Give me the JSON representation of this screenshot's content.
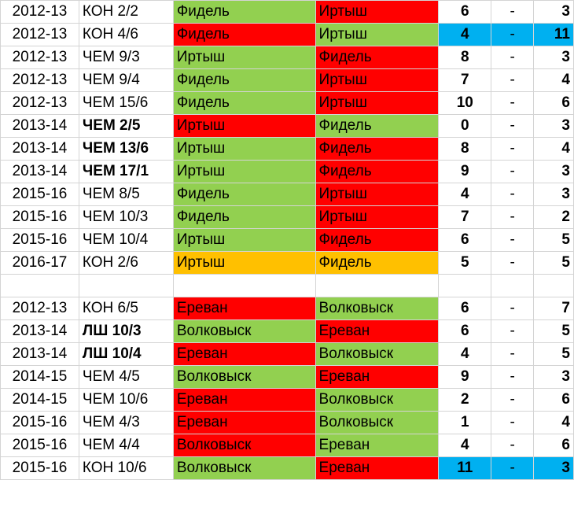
{
  "colors": {
    "win": "#92d050",
    "loss": "#ff0000",
    "draw": "#ffc000",
    "highlight": "#00b0f0"
  },
  "rows": [
    {
      "season": "2012-13",
      "stage": "КОН 2/2",
      "home": "Фидель",
      "away": "Иртыш",
      "hs": "6",
      "dash": "-",
      "as": "3",
      "homeColor": "#92d050",
      "awayColor": "#ff0000",
      "scoreColor": "",
      "bold": false
    },
    {
      "season": "2012-13",
      "stage": "КОН 4/6",
      "home": "Фидель",
      "away": "Иртыш",
      "hs": "4",
      "dash": "-",
      "as": "11",
      "homeColor": "#ff0000",
      "awayColor": "#92d050",
      "scoreColor": "#00b0f0",
      "bold": false
    },
    {
      "season": "2012-13",
      "stage": "ЧЕМ 9/3",
      "home": "Иртыш",
      "away": "Фидель",
      "hs": "8",
      "dash": "-",
      "as": "3",
      "homeColor": "#92d050",
      "awayColor": "#ff0000",
      "scoreColor": "",
      "bold": false
    },
    {
      "season": "2012-13",
      "stage": "ЧЕМ 9/4",
      "home": "Фидель",
      "away": "Иртыш",
      "hs": "7",
      "dash": "-",
      "as": "4",
      "homeColor": "#92d050",
      "awayColor": "#ff0000",
      "scoreColor": "",
      "bold": false
    },
    {
      "season": "2012-13",
      "stage": "ЧЕМ 15/6",
      "home": "Фидель",
      "away": "Иртыш",
      "hs": "10",
      "dash": "-",
      "as": "6",
      "homeColor": "#92d050",
      "awayColor": "#ff0000",
      "scoreColor": "",
      "bold": false
    },
    {
      "season": "2013-14",
      "stage": "ЧЕМ 2/5",
      "home": "Иртыш",
      "away": "Фидель",
      "hs": "0",
      "dash": "-",
      "as": "3",
      "homeColor": "#ff0000",
      "awayColor": "#92d050",
      "scoreColor": "",
      "bold": true
    },
    {
      "season": "2013-14",
      "stage": "ЧЕМ 13/6",
      "home": "Иртыш",
      "away": "Фидель",
      "hs": "8",
      "dash": "-",
      "as": "4",
      "homeColor": "#92d050",
      "awayColor": "#ff0000",
      "scoreColor": "",
      "bold": true
    },
    {
      "season": "2013-14",
      "stage": "ЧЕМ 17/1",
      "home": "Иртыш",
      "away": "Фидель",
      "hs": "9",
      "dash": "-",
      "as": "3",
      "homeColor": "#92d050",
      "awayColor": "#ff0000",
      "scoreColor": "",
      "bold": true
    },
    {
      "season": "2015-16",
      "stage": "ЧЕМ 8/5",
      "home": "Фидель",
      "away": "Иртыш",
      "hs": "4",
      "dash": "-",
      "as": "3",
      "homeColor": "#92d050",
      "awayColor": "#ff0000",
      "scoreColor": "",
      "bold": false
    },
    {
      "season": "2015-16",
      "stage": "ЧЕМ 10/3",
      "home": "Фидель",
      "away": "Иртыш",
      "hs": "7",
      "dash": "-",
      "as": "2",
      "homeColor": "#92d050",
      "awayColor": "#ff0000",
      "scoreColor": "",
      "bold": false
    },
    {
      "season": "2015-16",
      "stage": "ЧЕМ 10/4",
      "home": "Иртыш",
      "away": "Фидель",
      "hs": "6",
      "dash": "-",
      "as": "5",
      "homeColor": "#92d050",
      "awayColor": "#ff0000",
      "scoreColor": "",
      "bold": false
    },
    {
      "season": "2016-17",
      "stage": "КОН 2/6",
      "home": "Иртыш",
      "away": "Фидель",
      "hs": "5",
      "dash": "-",
      "as": "5",
      "homeColor": "#ffc000",
      "awayColor": "#ffc000",
      "scoreColor": "",
      "bold": false
    },
    {
      "blank": true
    },
    {
      "season": "2012-13",
      "stage": "КОН 6/5",
      "home": "Ереван",
      "away": "Волковыск",
      "hs": "6",
      "dash": "-",
      "as": "7",
      "homeColor": "#ff0000",
      "awayColor": "#92d050",
      "scoreColor": "",
      "bold": false
    },
    {
      "season": "2013-14",
      "stage": "ЛШ 10/3",
      "home": "Волковыск",
      "away": "Ереван",
      "hs": "6",
      "dash": "-",
      "as": "5",
      "homeColor": "#92d050",
      "awayColor": "#ff0000",
      "scoreColor": "",
      "bold": true
    },
    {
      "season": "2013-14",
      "stage": "ЛШ 10/4",
      "home": "Ереван",
      "away": "Волковыск",
      "hs": "4",
      "dash": "-",
      "as": "5",
      "homeColor": "#ff0000",
      "awayColor": "#92d050",
      "scoreColor": "",
      "bold": true
    },
    {
      "season": "2014-15",
      "stage": "ЧЕМ 4/5",
      "home": "Волковыск",
      "away": "Ереван",
      "hs": "9",
      "dash": "-",
      "as": "3",
      "homeColor": "#92d050",
      "awayColor": "#ff0000",
      "scoreColor": "",
      "bold": false
    },
    {
      "season": "2014-15",
      "stage": "ЧЕМ 10/6",
      "home": "Ереван",
      "away": "Волковыск",
      "hs": "2",
      "dash": "-",
      "as": "6",
      "homeColor": "#ff0000",
      "awayColor": "#92d050",
      "scoreColor": "",
      "bold": false
    },
    {
      "season": "2015-16",
      "stage": "ЧЕМ 4/3",
      "home": "Ереван",
      "away": "Волковыск",
      "hs": "1",
      "dash": "-",
      "as": "4",
      "homeColor": "#ff0000",
      "awayColor": "#92d050",
      "scoreColor": "",
      "bold": false
    },
    {
      "season": "2015-16",
      "stage": "ЧЕМ 4/4",
      "home": "Волковыск",
      "away": "Ереван",
      "hs": "4",
      "dash": "-",
      "as": "6",
      "homeColor": "#ff0000",
      "awayColor": "#92d050",
      "scoreColor": "",
      "bold": false
    },
    {
      "season": "2015-16",
      "stage": "КОН 10/6",
      "home": "Волковыск",
      "away": "Ереван",
      "hs": "11",
      "dash": "-",
      "as": "3",
      "homeColor": "#92d050",
      "awayColor": "#ff0000",
      "scoreColor": "#00b0f0",
      "bold": false
    }
  ]
}
